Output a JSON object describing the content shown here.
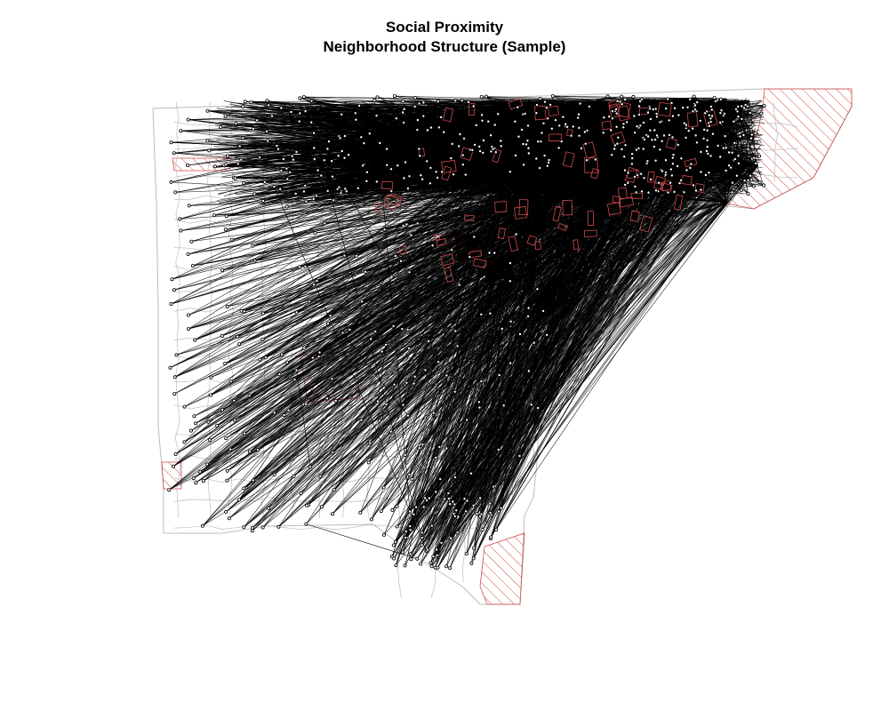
{
  "figure": {
    "title": "Social Proximity",
    "subtitle": "Neighborhood Structure (Sample)"
  },
  "colors": {
    "background": "#ffffff",
    "tract_border": "#bdbdbd",
    "edge": "#000000",
    "node": "#000000",
    "highlight_hatch": "#d24a4a"
  },
  "map": {
    "projection": "county-outline",
    "highlight_regions": "hatched"
  }
}
